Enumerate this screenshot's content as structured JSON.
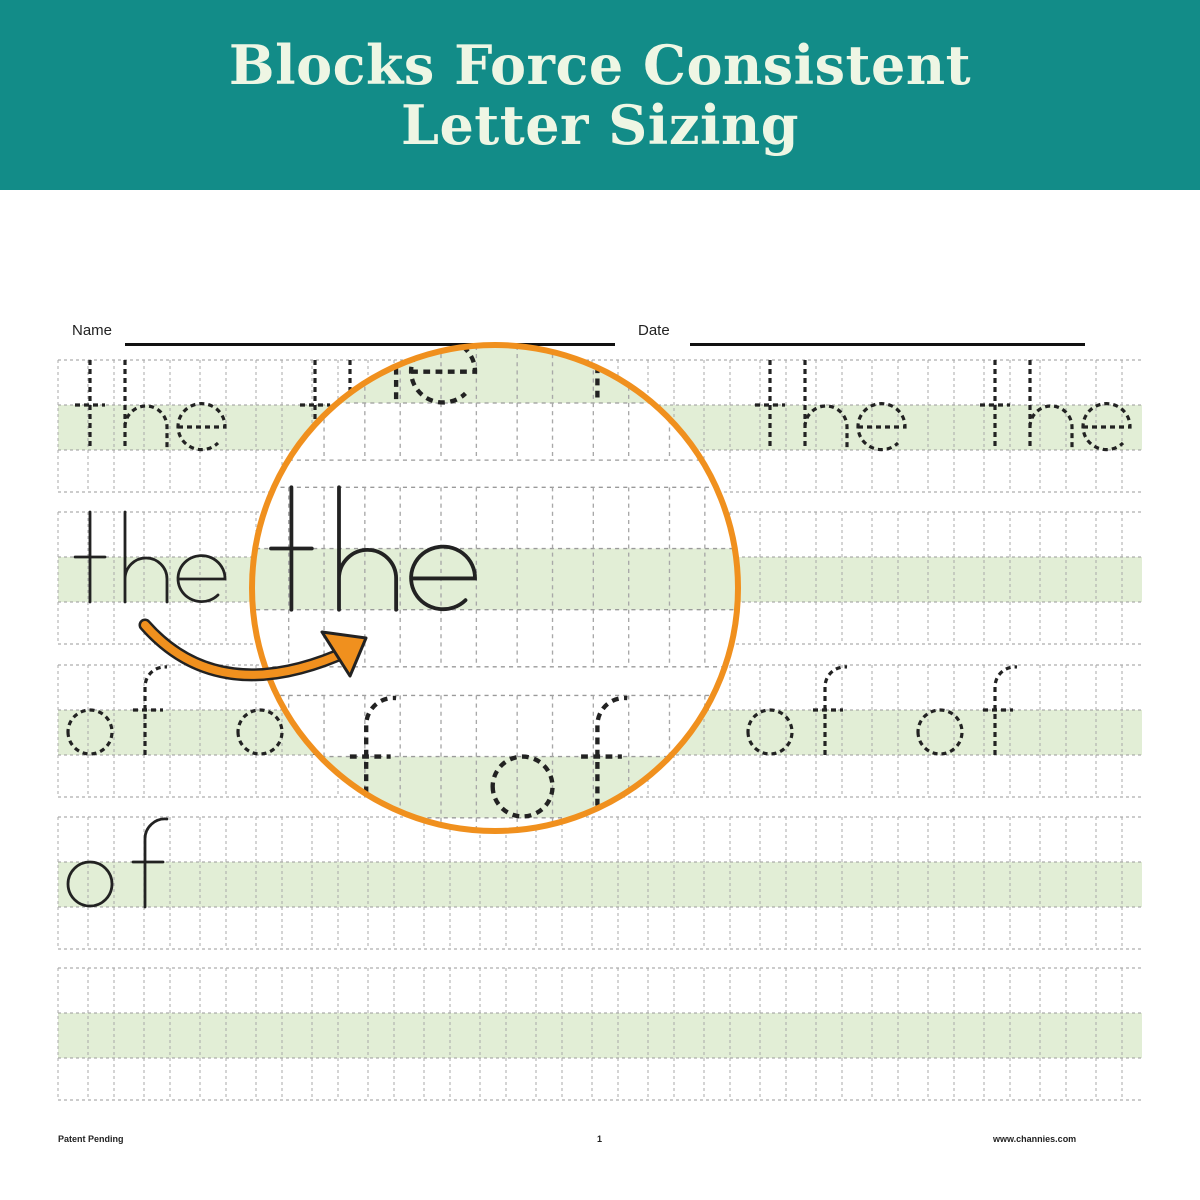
{
  "banner": {
    "title_line1": "Blocks Force Consistent",
    "title_line2": "Letter Sizing",
    "background": "#128c88"
  },
  "worksheet": {
    "name_label": "Name",
    "date_label": "Date",
    "rows": [
      {
        "word": "the",
        "style": "dashed-trace",
        "repeats": 4
      },
      {
        "word": "the",
        "style": "solid-example",
        "repeats": 1
      },
      {
        "word": "of",
        "style": "dashed-trace",
        "repeats": 4
      },
      {
        "word": "of",
        "style": "solid-example",
        "repeats": 1
      },
      {
        "word": "",
        "style": "blank",
        "repeats": 0
      }
    ],
    "band_color": "#e2eed6"
  },
  "magnifier": {
    "color": "#f0901e",
    "icon": "magnifier-circle",
    "arrow_icon": "curved-arrow"
  },
  "footer": {
    "left": "Patent Pending",
    "center": "1",
    "right": "www.channies.com"
  }
}
